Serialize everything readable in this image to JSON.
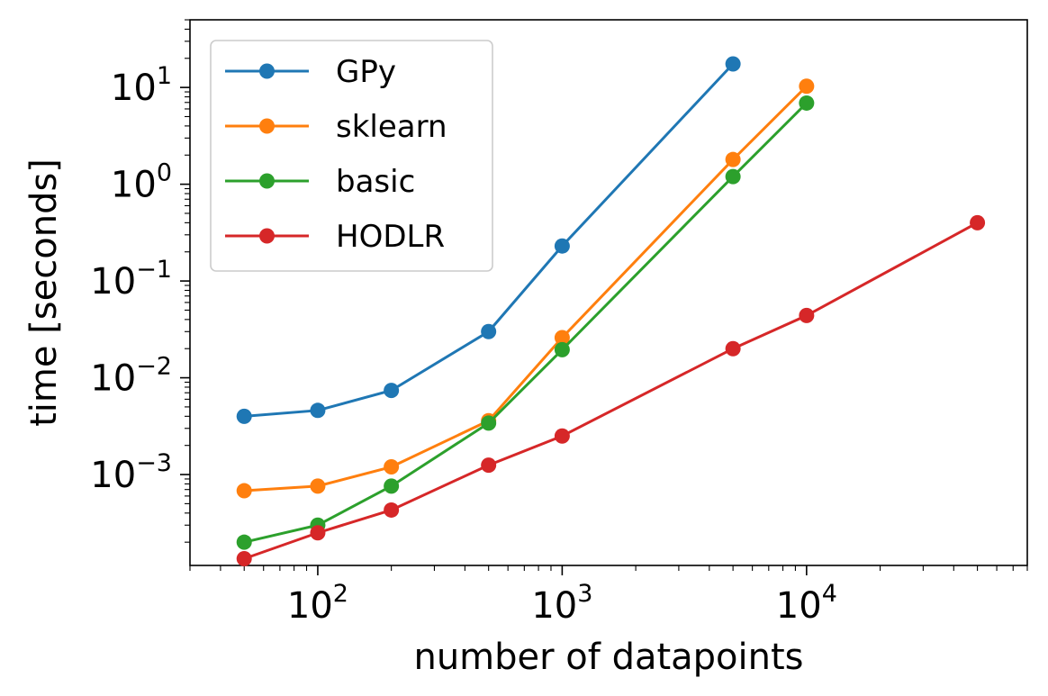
{
  "chart_data": {
    "type": "line",
    "title": "",
    "xlabel": "number of datapoints",
    "ylabel": "time [seconds]",
    "xscale": "log",
    "yscale": "log",
    "xlim": [
      30,
      80000
    ],
    "ylim": [
      0.000115,
      50
    ],
    "grid": false,
    "legend_position": "top-left",
    "x_ticks": [
      {
        "value": 100,
        "base": "10",
        "exp": "2"
      },
      {
        "value": 1000,
        "base": "10",
        "exp": "3"
      },
      {
        "value": 10000,
        "base": "10",
        "exp": "4"
      }
    ],
    "y_ticks": [
      {
        "value": 0.001,
        "base": "10",
        "exp": "−3"
      },
      {
        "value": 0.01,
        "base": "10",
        "exp": "−2"
      },
      {
        "value": 0.1,
        "base": "10",
        "exp": "−1"
      },
      {
        "value": 1,
        "base": "10",
        "exp": "0"
      },
      {
        "value": 10,
        "base": "10",
        "exp": "1"
      }
    ],
    "series": [
      {
        "name": "GPy",
        "color": "#1f77b4",
        "x": [
          50,
          100,
          200,
          500,
          1000,
          5000
        ],
        "y": [
          0.004,
          0.0046,
          0.0074,
          0.03,
          0.23,
          17.5
        ]
      },
      {
        "name": "sklearn",
        "color": "#ff7f0e",
        "x": [
          50,
          100,
          200,
          500,
          1000,
          5000,
          10000
        ],
        "y": [
          0.00068,
          0.00076,
          0.0012,
          0.0036,
          0.026,
          1.8,
          10.3
        ]
      },
      {
        "name": "basic",
        "color": "#2ca02c",
        "x": [
          50,
          100,
          200,
          500,
          1000,
          5000,
          10000
        ],
        "y": [
          0.0002,
          0.0003,
          0.00076,
          0.0034,
          0.0195,
          1.2,
          6.9
        ]
      },
      {
        "name": "HODLR",
        "color": "#d62728",
        "x": [
          50,
          100,
          200,
          500,
          1000,
          5000,
          10000,
          50000
        ],
        "y": [
          0.000135,
          0.00025,
          0.00043,
          0.00125,
          0.0025,
          0.02,
          0.044,
          0.4
        ]
      }
    ]
  }
}
